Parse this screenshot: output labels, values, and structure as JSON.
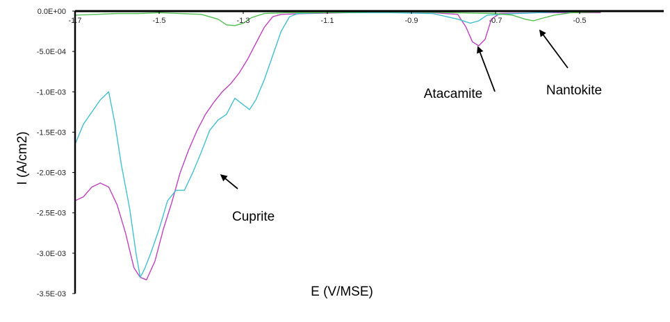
{
  "chart_data": {
    "type": "line",
    "xlabel": "E (V/MSE)",
    "ylabel": "I (A/cm2)",
    "xlim": [
      -1.7,
      -0.3
    ],
    "ylim": [
      -0.0035,
      0
    ],
    "x_ticks": [
      -1.7,
      -1.5,
      -1.3,
      -1.1,
      -0.9,
      -0.7,
      -0.5
    ],
    "x_tick_labels": [
      "-1.7",
      "-1.5",
      "-1.3",
      "-1.1",
      "-0.9",
      "-0.7",
      "-0.5"
    ],
    "y_ticks": [
      0,
      -0.0005,
      -0.001,
      -0.0015,
      -0.002,
      -0.0025,
      -0.003,
      -0.0035
    ],
    "y_tick_labels": [
      "0.0E+00",
      "-5.0E-04",
      "-1.0E-03",
      "-1.5E-03",
      "-2.0E-03",
      "-2.5E-03",
      "-3.0E-03",
      "-3.5E-03"
    ],
    "grid": false,
    "series": [
      {
        "color": "#c040c0",
        "points": [
          [
            -1.7,
            -0.00235
          ],
          [
            -1.68,
            -0.0023
          ],
          [
            -1.66,
            -0.00218
          ],
          [
            -1.64,
            -0.00213
          ],
          [
            -1.62,
            -0.00218
          ],
          [
            -1.6,
            -0.0024
          ],
          [
            -1.58,
            -0.00275
          ],
          [
            -1.56,
            -0.00318
          ],
          [
            -1.545,
            -0.0033
          ],
          [
            -1.53,
            -0.00333
          ],
          [
            -1.51,
            -0.0031
          ],
          [
            -1.49,
            -0.0027
          ],
          [
            -1.47,
            -0.00237
          ],
          [
            -1.45,
            -0.002
          ],
          [
            -1.43,
            -0.00172
          ],
          [
            -1.41,
            -0.00148
          ],
          [
            -1.39,
            -0.00128
          ],
          [
            -1.37,
            -0.00113
          ],
          [
            -1.35,
            -0.001
          ],
          [
            -1.33,
            -0.0009
          ],
          [
            -1.31,
            -0.00077
          ],
          [
            -1.29,
            -0.0006
          ],
          [
            -1.27,
            -0.0004
          ],
          [
            -1.25,
            -0.0002
          ],
          [
            -1.23,
            -7e-05
          ],
          [
            -1.21,
            -4e-05
          ],
          [
            -1.15,
            -3e-05
          ],
          [
            -1.05,
            -2e-05
          ],
          [
            -0.95,
            -2e-05
          ],
          [
            -0.85,
            -2e-05
          ],
          [
            -0.79,
            -4e-05
          ],
          [
            -0.77,
            -0.0002
          ],
          [
            -0.755,
            -0.00038
          ],
          [
            -0.74,
            -0.00043
          ],
          [
            -0.725,
            -0.00035
          ],
          [
            -0.71,
            -0.0001
          ],
          [
            -0.69,
            -3e-05
          ],
          [
            -0.6,
            -2e-05
          ],
          [
            -0.45,
            -2e-05
          ]
        ]
      },
      {
        "color": "#40c0d0",
        "points": [
          [
            -1.7,
            -0.00165
          ],
          [
            -1.68,
            -0.0014
          ],
          [
            -1.66,
            -0.00125
          ],
          [
            -1.64,
            -0.0011
          ],
          [
            -1.62,
            -0.001
          ],
          [
            -1.605,
            -0.0014
          ],
          [
            -1.59,
            -0.0019
          ],
          [
            -1.57,
            -0.00245
          ],
          [
            -1.555,
            -0.003
          ],
          [
            -1.545,
            -0.0033
          ],
          [
            -1.535,
            -0.0032
          ],
          [
            -1.52,
            -0.003
          ],
          [
            -1.5,
            -0.0027
          ],
          [
            -1.48,
            -0.00235
          ],
          [
            -1.46,
            -0.00222
          ],
          [
            -1.44,
            -0.00222
          ],
          [
            -1.42,
            -0.002
          ],
          [
            -1.4,
            -0.00175
          ],
          [
            -1.38,
            -0.00148
          ],
          [
            -1.36,
            -0.00135
          ],
          [
            -1.34,
            -0.00128
          ],
          [
            -1.32,
            -0.00108
          ],
          [
            -1.3,
            -0.00116
          ],
          [
            -1.285,
            -0.00122
          ],
          [
            -1.27,
            -0.0011
          ],
          [
            -1.25,
            -0.00085
          ],
          [
            -1.23,
            -0.00055
          ],
          [
            -1.21,
            -0.00025
          ],
          [
            -1.19,
            -7e-05
          ],
          [
            -1.17,
            -3e-05
          ],
          [
            -1.1,
            -2e-05
          ],
          [
            -0.95,
            -2e-05
          ],
          [
            -0.85,
            -3e-05
          ],
          [
            -0.79,
            -0.0001
          ],
          [
            -0.76,
            -0.00015
          ],
          [
            -0.74,
            -0.00012
          ],
          [
            -0.72,
            -5e-05
          ],
          [
            -0.65,
            -3e-05
          ],
          [
            -0.55,
            -1e-05
          ],
          [
            -0.45,
            -1e-05
          ]
        ]
      },
      {
        "color": "#50c050",
        "points": [
          [
            -1.7,
            -5e-05
          ],
          [
            -1.65,
            -4e-05
          ],
          [
            -1.6,
            -3e-05
          ],
          [
            -1.55,
            -3e-05
          ],
          [
            -1.5,
            -2e-05
          ],
          [
            -1.45,
            -3e-05
          ],
          [
            -1.4,
            -4e-05
          ],
          [
            -1.36,
            -0.0001
          ],
          [
            -1.34,
            -0.00017
          ],
          [
            -1.32,
            -0.00018
          ],
          [
            -1.3,
            -0.00015
          ],
          [
            -1.28,
            -8e-05
          ],
          [
            -1.25,
            -3e-05
          ],
          [
            -1.2,
            -2e-05
          ],
          [
            -1.1,
            -2e-05
          ],
          [
            -1.0,
            -1e-05
          ],
          [
            -0.9,
            -1e-05
          ],
          [
            -0.8,
            -2e-05
          ],
          [
            -0.7,
            -3e-05
          ],
          [
            -0.66,
            -5e-05
          ],
          [
            -0.63,
            -0.0001
          ],
          [
            -0.61,
            -0.00012
          ],
          [
            -0.59,
            -9e-05
          ],
          [
            -0.56,
            -5e-05
          ],
          [
            -0.52,
            -2e-05
          ],
          [
            -0.45,
            -1e-05
          ]
        ]
      }
    ],
    "annotations": [
      {
        "text": "Cuprite",
        "point": [
          -1.36,
          -0.002
        ]
      },
      {
        "text": "Atacamite",
        "point": [
          -0.745,
          -0.0004
        ]
      },
      {
        "text": "Nantokite",
        "point": [
          -0.6,
          -0.0002
        ]
      }
    ]
  }
}
